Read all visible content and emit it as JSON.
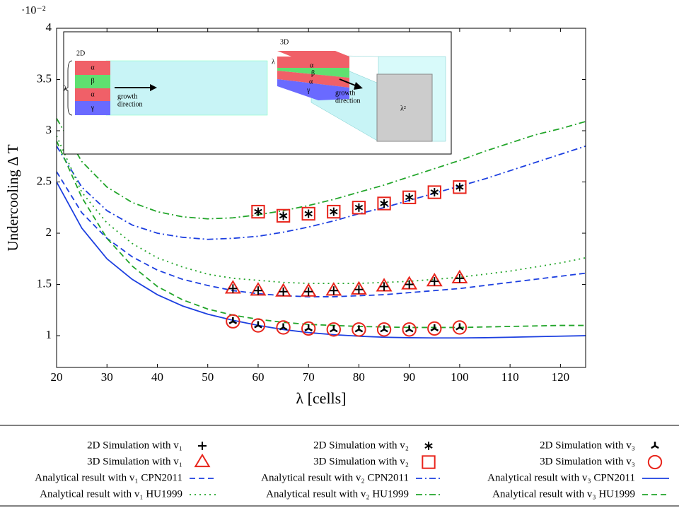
{
  "chart_data": {
    "type": "line",
    "y_multiplier": "·10⁻²",
    "xlabel": "λ [cells]",
    "ylabel": "Undercooling Δ T",
    "xlim": [
      20,
      125
    ],
    "ylim": [
      0.69,
      4
    ],
    "xticks": [
      20,
      30,
      40,
      50,
      60,
      70,
      80,
      90,
      100,
      110,
      120
    ],
    "yticks": [
      1,
      1.5,
      2,
      2.5,
      3,
      3.5,
      4
    ],
    "inset": {
      "left_label": "2D",
      "right_label": "3D",
      "phases": [
        "α",
        "β",
        "α",
        "γ"
      ],
      "spacing": "λ",
      "growth": "growth",
      "direction": "direction",
      "area": "λ²"
    },
    "series": [
      {
        "name": "2D Simulation with v₁",
        "kind": "scatter",
        "marker": "plus",
        "color": "#000000",
        "x": [
          55,
          60,
          65,
          70,
          75,
          80,
          85,
          90,
          95,
          100
        ],
        "values": [
          1.46,
          1.44,
          1.43,
          1.43,
          1.44,
          1.45,
          1.48,
          1.5,
          1.53,
          1.56
        ]
      },
      {
        "name": "2D Simulation with v₂",
        "kind": "scatter",
        "marker": "asterisk",
        "color": "#000000",
        "x": [
          60,
          65,
          70,
          75,
          80,
          85,
          90,
          95,
          100
        ],
        "values": [
          2.21,
          2.17,
          2.19,
          2.21,
          2.25,
          2.29,
          2.35,
          2.4,
          2.45
        ]
      },
      {
        "name": "2D Simulation with v₃",
        "kind": "scatter",
        "marker": "tri",
        "color": "#000000",
        "x": [
          55,
          60,
          65,
          70,
          75,
          80,
          85,
          90,
          95,
          100
        ],
        "values": [
          1.14,
          1.1,
          1.08,
          1.07,
          1.06,
          1.06,
          1.06,
          1.06,
          1.07,
          1.08
        ]
      },
      {
        "name": "3D Simulation with v₁",
        "kind": "scatter",
        "marker": "triangle",
        "color": "#e8251c",
        "x": [
          55,
          60,
          65,
          70,
          75,
          80,
          85,
          90,
          95,
          100
        ],
        "values": [
          1.46,
          1.44,
          1.43,
          1.43,
          1.44,
          1.45,
          1.48,
          1.5,
          1.53,
          1.56
        ]
      },
      {
        "name": "3D Simulation with v₂",
        "kind": "scatter",
        "marker": "square",
        "color": "#e8251c",
        "x": [
          60,
          65,
          70,
          75,
          80,
          85,
          90,
          95,
          100
        ],
        "values": [
          2.21,
          2.17,
          2.19,
          2.21,
          2.25,
          2.29,
          2.35,
          2.4,
          2.45
        ]
      },
      {
        "name": "3D Simulation with v₃",
        "kind": "scatter",
        "marker": "circle",
        "color": "#e8251c",
        "x": [
          55,
          60,
          65,
          70,
          75,
          80,
          85,
          90,
          95,
          100
        ],
        "values": [
          1.14,
          1.1,
          1.08,
          1.07,
          1.06,
          1.06,
          1.06,
          1.06,
          1.07,
          1.08
        ]
      },
      {
        "name": "Analytical result with v₁ CPN2011",
        "kind": "line",
        "dash": "dashed",
        "color": "#1c3fe0",
        "x": [
          20,
          25,
          30,
          35,
          40,
          45,
          50,
          55,
          60,
          65,
          70,
          75,
          80,
          85,
          90,
          95,
          100,
          105,
          110,
          115,
          120,
          125
        ],
        "values": [
          2.6,
          2.2,
          1.95,
          1.77,
          1.64,
          1.55,
          1.49,
          1.44,
          1.41,
          1.39,
          1.38,
          1.38,
          1.39,
          1.4,
          1.42,
          1.44,
          1.46,
          1.49,
          1.52,
          1.55,
          1.58,
          1.61
        ]
      },
      {
        "name": "Analytical result with v₂ CPN2011",
        "kind": "line",
        "dash": "dashdot",
        "color": "#1c3fe0",
        "x": [
          20,
          25,
          30,
          35,
          40,
          45,
          50,
          55,
          60,
          65,
          70,
          75,
          80,
          85,
          90,
          95,
          100,
          105,
          110,
          115,
          120,
          125
        ],
        "values": [
          2.85,
          2.45,
          2.22,
          2.08,
          2.0,
          1.96,
          1.94,
          1.95,
          1.97,
          2.01,
          2.06,
          2.12,
          2.19,
          2.25,
          2.32,
          2.39,
          2.46,
          2.53,
          2.61,
          2.69,
          2.77,
          2.85
        ]
      },
      {
        "name": "Analytical result with v₃ CPN2011",
        "kind": "line",
        "dash": "solid",
        "color": "#1c3fe0",
        "x": [
          20,
          25,
          30,
          35,
          40,
          45,
          50,
          55,
          60,
          65,
          70,
          75,
          80,
          85,
          90,
          95,
          100,
          105,
          110,
          115,
          120,
          125
        ],
        "values": [
          2.5,
          2.05,
          1.75,
          1.55,
          1.4,
          1.29,
          1.21,
          1.15,
          1.1,
          1.06,
          1.03,
          1.01,
          0.995,
          0.985,
          0.98,
          0.978,
          0.978,
          0.98,
          0.985,
          0.99,
          0.995,
          1.0
        ]
      },
      {
        "name": "Analytical result with v₁ HU1999",
        "kind": "line",
        "dash": "dotted",
        "color": "#22a52a",
        "x": [
          20,
          25,
          30,
          35,
          40,
          45,
          50,
          55,
          60,
          65,
          70,
          75,
          80,
          85,
          90,
          95,
          100,
          105,
          110,
          115,
          120,
          125
        ],
        "values": [
          2.95,
          2.4,
          2.1,
          1.9,
          1.76,
          1.67,
          1.6,
          1.56,
          1.54,
          1.52,
          1.51,
          1.51,
          1.51,
          1.52,
          1.53,
          1.55,
          1.57,
          1.6,
          1.63,
          1.67,
          1.71,
          1.76
        ]
      },
      {
        "name": "Analytical result with v₂ HU1999",
        "kind": "line",
        "dash": "dashdot",
        "color": "#22a52a",
        "x": [
          20,
          25,
          30,
          35,
          40,
          45,
          50,
          55,
          60,
          65,
          70,
          75,
          80,
          85,
          90,
          95,
          100,
          105,
          110,
          115,
          120,
          125
        ],
        "values": [
          3.12,
          2.7,
          2.45,
          2.3,
          2.21,
          2.16,
          2.14,
          2.15,
          2.18,
          2.22,
          2.27,
          2.33,
          2.4,
          2.47,
          2.55,
          2.63,
          2.71,
          2.8,
          2.88,
          2.96,
          3.02,
          3.09
        ]
      },
      {
        "name": "Analytical result with v₃ HU1999",
        "kind": "line",
        "dash": "dashed",
        "color": "#22a52a",
        "x": [
          20,
          25,
          30,
          35,
          40,
          45,
          50,
          55,
          60,
          65,
          70,
          75,
          80,
          85,
          90,
          95,
          100,
          105,
          110,
          115,
          120,
          125
        ],
        "values": [
          2.9,
          2.35,
          1.95,
          1.68,
          1.48,
          1.35,
          1.26,
          1.2,
          1.16,
          1.13,
          1.11,
          1.1,
          1.09,
          1.085,
          1.08,
          1.08,
          1.08,
          1.085,
          1.09,
          1.095,
          1.1,
          1.1
        ]
      }
    ]
  }
}
